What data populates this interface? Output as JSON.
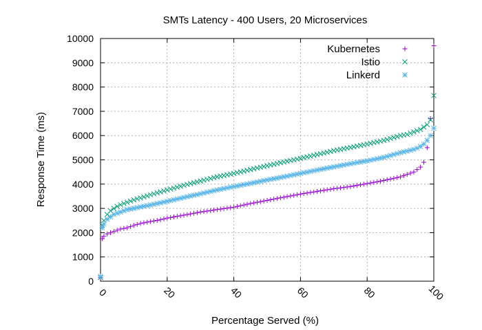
{
  "chart_data": {
    "type": "scatter",
    "title": "SMTs Latency - 400 Users, 20 Microservices",
    "xlabel": "Percentage Served (%)",
    "ylabel": "Response Time (ms)",
    "xlim": [
      0,
      100
    ],
    "ylim": [
      0,
      10000
    ],
    "xticks": [
      "0",
      "20",
      "40",
      "60",
      "80",
      "100"
    ],
    "yticks": [
      "0",
      "1000",
      "2000",
      "3000",
      "4000",
      "5000",
      "6000",
      "7000",
      "8000",
      "9000",
      "10000"
    ],
    "grid": true,
    "legend_position": "top-right",
    "series": [
      {
        "name": "Kubernetes",
        "marker": "plus",
        "color": "#9400d3",
        "x": [
          0,
          0.5,
          1,
          2,
          3,
          4,
          5,
          6,
          8,
          10,
          12,
          15,
          18,
          20,
          25,
          30,
          35,
          40,
          45,
          50,
          55,
          60,
          65,
          70,
          75,
          80,
          85,
          90,
          92,
          94,
          95,
          96,
          97,
          98,
          99,
          100
        ],
        "y": [
          150,
          1750,
          1850,
          1950,
          2000,
          2050,
          2100,
          2150,
          2200,
          2300,
          2380,
          2460,
          2530,
          2600,
          2720,
          2850,
          2950,
          3050,
          3200,
          3330,
          3460,
          3590,
          3700,
          3810,
          3900,
          4020,
          4150,
          4300,
          4400,
          4500,
          4600,
          4700,
          4900,
          5500,
          6700,
          9700
        ]
      },
      {
        "name": "Istio",
        "marker": "cross",
        "color": "#009e73",
        "x": [
          0,
          0.5,
          1,
          2,
          3,
          4,
          5,
          6,
          8,
          10,
          12,
          15,
          18,
          20,
          25,
          30,
          35,
          40,
          45,
          50,
          55,
          60,
          65,
          70,
          75,
          80,
          85,
          90,
          92,
          94,
          95,
          96,
          97,
          98,
          99,
          100
        ],
        "y": [
          150,
          2300,
          2500,
          2750,
          2900,
          3000,
          3080,
          3150,
          3250,
          3350,
          3430,
          3560,
          3680,
          3760,
          3950,
          4130,
          4300,
          4440,
          4600,
          4760,
          4910,
          5060,
          5220,
          5380,
          5510,
          5650,
          5800,
          6000,
          6050,
          6150,
          6200,
          6250,
          6350,
          6450,
          6650,
          7650
        ]
      },
      {
        "name": "Linkerd",
        "marker": "star",
        "color": "#56b4e9",
        "x": [
          0,
          0.5,
          1,
          2,
          3,
          4,
          5,
          6,
          8,
          10,
          12,
          15,
          18,
          20,
          25,
          30,
          35,
          40,
          45,
          50,
          55,
          60,
          65,
          70,
          75,
          80,
          85,
          90,
          92,
          94,
          95,
          96,
          97,
          98,
          99,
          100
        ],
        "y": [
          200,
          2200,
          2350,
          2550,
          2650,
          2750,
          2800,
          2850,
          2950,
          3000,
          3060,
          3140,
          3230,
          3290,
          3450,
          3600,
          3760,
          3900,
          4030,
          4170,
          4300,
          4440,
          4580,
          4710,
          4840,
          4960,
          5100,
          5300,
          5360,
          5430,
          5480,
          5550,
          5650,
          5800,
          6000,
          6300
        ]
      }
    ]
  }
}
